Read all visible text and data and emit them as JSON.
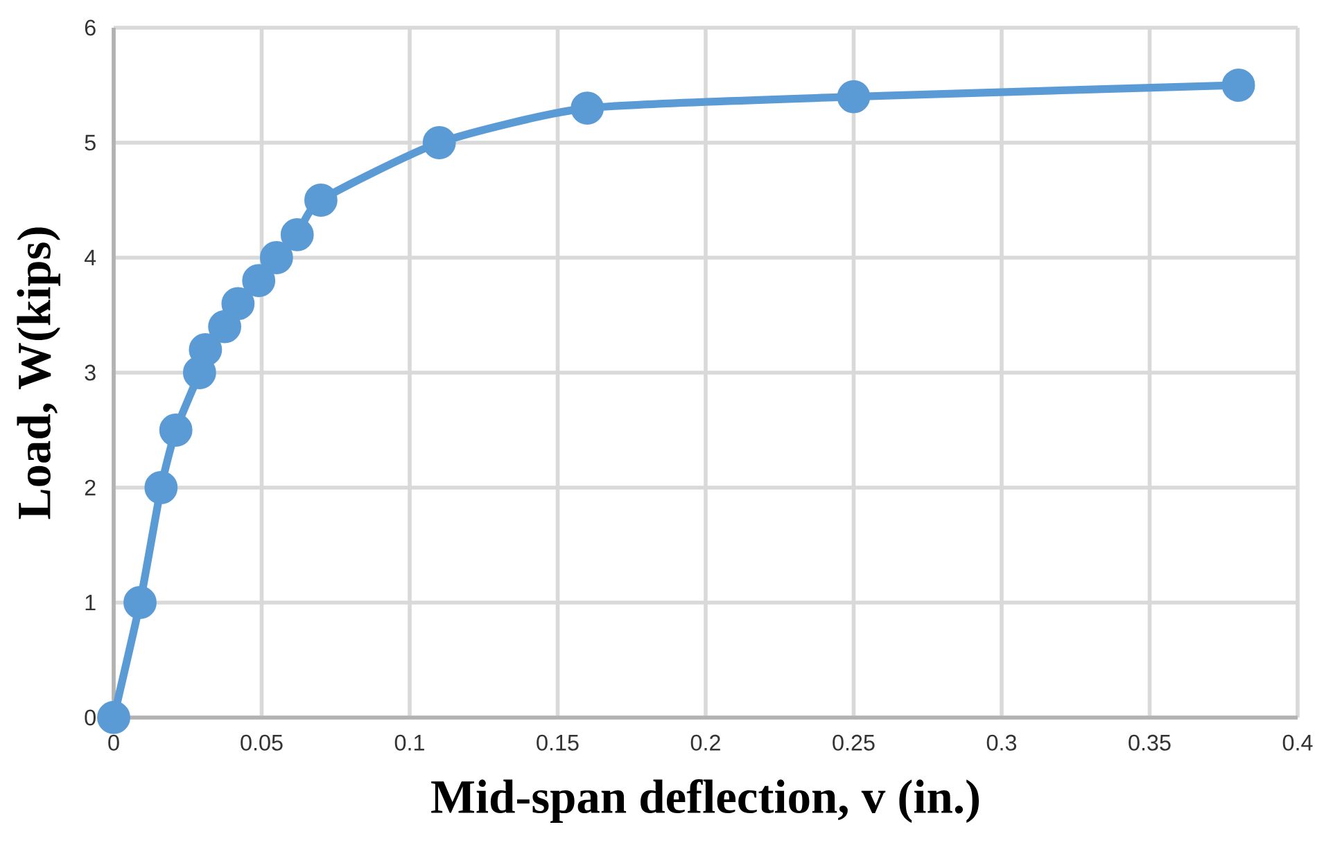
{
  "chart_data": {
    "type": "line",
    "xlabel": "Mid-span deflection, v (in.)",
    "ylabel": "Load, W(kips)",
    "x": [
      0,
      0.0089,
      0.016,
      0.021,
      0.029,
      0.031,
      0.0375,
      0.042,
      0.049,
      0.055,
      0.062,
      0.07,
      0.11,
      0.16,
      0.25,
      0.38
    ],
    "series": [
      {
        "color": "#5b9bd5",
        "values": [
          0,
          1,
          2,
          2.5,
          3,
          3.2,
          3.4,
          3.6,
          3.8,
          4,
          4.2,
          4.5,
          5,
          5.3,
          5.4,
          5.5
        ]
      }
    ],
    "xlim": [
      0,
      0.4
    ],
    "xticks": [
      0,
      0.05,
      0.1,
      0.15,
      0.2,
      0.25,
      0.3,
      0.35,
      0.4
    ],
    "ylim": [
      0,
      6
    ],
    "yticks": [
      0,
      1,
      2,
      3,
      4,
      5,
      6
    ],
    "grid": true,
    "marker": "circle",
    "line_style": "solid"
  }
}
